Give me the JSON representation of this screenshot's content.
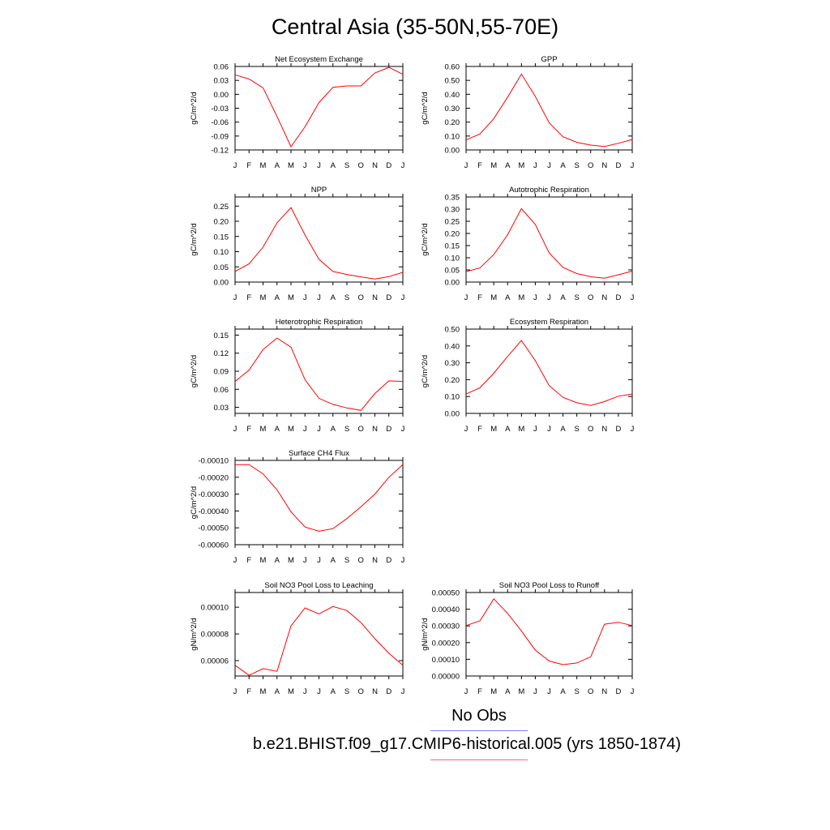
{
  "page": {
    "title": "Central Asia (35-50N,55-70E)"
  },
  "legend": {
    "obs_label": "No Obs",
    "case_label": "b.e21.BHIST.f09_g17.CMIP6-historical.005 (yrs 1850-1874)",
    "obs_color": "#7b7bff",
    "case_color": "#ff0000"
  },
  "chart_data": [
    {
      "type": "line",
      "title": "Net Ecosystem Exchange",
      "ylabel": "gC/m^2/d",
      "categories": [
        "J",
        "F",
        "M",
        "A",
        "M",
        "J",
        "J",
        "A",
        "S",
        "O",
        "N",
        "D",
        "J"
      ],
      "ylim": [
        -0.12,
        0.06
      ],
      "yticks": [
        "0.06",
        "0.03",
        "0.00",
        "-0.03",
        "-0.06",
        "-0.09",
        "-0.12"
      ],
      "series": [
        {
          "values": [
            0.042,
            0.033,
            0.014,
            -0.048,
            -0.113,
            -0.07,
            -0.018,
            0.015,
            0.018,
            0.018,
            0.046,
            0.058,
            0.043
          ],
          "color": "#ff0000"
        }
      ]
    },
    {
      "type": "line",
      "title": "GPP",
      "ylabel": "gC/m^2/d",
      "categories": [
        "J",
        "F",
        "M",
        "A",
        "M",
        "J",
        "J",
        "A",
        "S",
        "O",
        "N",
        "D",
        "J"
      ],
      "ylim": [
        0.0,
        0.6
      ],
      "yticks": [
        "0.60",
        "0.50",
        "0.40",
        "0.30",
        "0.20",
        "0.10",
        "0.00"
      ],
      "series": [
        {
          "values": [
            0.072,
            0.115,
            0.225,
            0.38,
            0.545,
            0.385,
            0.195,
            0.095,
            0.055,
            0.035,
            0.025,
            0.048,
            0.075
          ],
          "color": "#ff0000"
        }
      ]
    },
    {
      "type": "line",
      "title": "NPP",
      "ylabel": "gC/m^2/d",
      "categories": [
        "J",
        "F",
        "M",
        "A",
        "M",
        "J",
        "J",
        "A",
        "S",
        "O",
        "N",
        "D",
        "J"
      ],
      "ylim": [
        0.0,
        0.28
      ],
      "yticks": [
        "0.25",
        "0.20",
        "0.15",
        "0.10",
        "0.05",
        "0.00"
      ],
      "series": [
        {
          "values": [
            0.035,
            0.06,
            0.115,
            0.195,
            0.245,
            0.155,
            0.075,
            0.035,
            0.025,
            0.017,
            0.01,
            0.018,
            0.032
          ],
          "color": "#ff0000"
        }
      ]
    },
    {
      "type": "line",
      "title": "Autotrophic Respiration",
      "ylabel": "gC/m^2/d",
      "categories": [
        "J",
        "F",
        "M",
        "A",
        "M",
        "J",
        "J",
        "A",
        "S",
        "O",
        "N",
        "D",
        "J"
      ],
      "ylim": [
        0.0,
        0.35
      ],
      "yticks": [
        "0.35",
        "0.30",
        "0.25",
        "0.20",
        "0.15",
        "0.10",
        "0.05",
        "0.00"
      ],
      "series": [
        {
          "values": [
            0.043,
            0.058,
            0.113,
            0.195,
            0.302,
            0.237,
            0.12,
            0.06,
            0.035,
            0.022,
            0.016,
            0.03,
            0.045
          ],
          "color": "#ff0000"
        }
      ]
    },
    {
      "type": "line",
      "title": "Heterotrophic Respiration",
      "ylabel": "gC/m^2/d",
      "categories": [
        "J",
        "F",
        "M",
        "A",
        "M",
        "J",
        "J",
        "A",
        "S",
        "O",
        "N",
        "D",
        "J"
      ],
      "ylim": [
        0.02,
        0.16
      ],
      "yticks": [
        "0.15",
        "0.12",
        "0.09",
        "0.06",
        "0.03"
      ],
      "series": [
        {
          "values": [
            0.073,
            0.092,
            0.126,
            0.145,
            0.13,
            0.076,
            0.045,
            0.035,
            0.029,
            0.025,
            0.053,
            0.074,
            0.073
          ],
          "color": "#ff0000"
        }
      ]
    },
    {
      "type": "line",
      "title": "Ecosystem Respiration",
      "ylabel": "gC/m^2/d",
      "categories": [
        "J",
        "F",
        "M",
        "A",
        "M",
        "J",
        "J",
        "A",
        "S",
        "O",
        "N",
        "D",
        "J"
      ],
      "ylim": [
        0.0,
        0.5
      ],
      "yticks": [
        "0.50",
        "0.40",
        "0.30",
        "0.20",
        "0.10",
        "0.00"
      ],
      "series": [
        {
          "values": [
            0.115,
            0.152,
            0.238,
            0.338,
            0.432,
            0.313,
            0.165,
            0.095,
            0.063,
            0.047,
            0.07,
            0.102,
            0.115
          ],
          "color": "#ff0000"
        }
      ]
    },
    {
      "type": "line",
      "title": "Surface CH4 Flux",
      "ylabel": "gC/m^2/d",
      "categories": [
        "J",
        "F",
        "M",
        "A",
        "M",
        "J",
        "J",
        "A",
        "S",
        "O",
        "N",
        "D",
        "J"
      ],
      "ylim": [
        -0.0006,
        -0.0001
      ],
      "yticks": [
        "-0.00010",
        "-0.00020",
        "-0.00030",
        "-0.00040",
        "-0.00050",
        "-0.00060"
      ],
      "series": [
        {
          "values": [
            -0.000125,
            -0.000125,
            -0.00018,
            -0.000275,
            -0.000405,
            -0.000495,
            -0.00052,
            -0.000505,
            -0.000445,
            -0.000375,
            -0.0003,
            -0.0002,
            -0.000125
          ],
          "color": "#ff0000"
        }
      ]
    },
    {
      "type": "line",
      "title": "Soil NO3 Pool Loss to Leaching",
      "ylabel": "gN/m^2/d",
      "categories": [
        "J",
        "F",
        "M",
        "A",
        "M",
        "J",
        "J",
        "A",
        "S",
        "O",
        "N",
        "D",
        "J"
      ],
      "ylim": [
        4.85e-05,
        0.000111
      ],
      "yticks": [
        "0.00010",
        "0.00008",
        "0.00006"
      ],
      "series": [
        {
          "values": [
            5.65e-05,
            4.9e-05,
            5.4e-05,
            5.2e-05,
            8.6e-05,
            9.95e-05,
            9.5e-05,
            0.0001005,
            9.75e-05,
            8.85e-05,
            7.65e-05,
            6.55e-05,
            5.65e-05
          ],
          "color": "#ff0000"
        }
      ]
    },
    {
      "type": "line",
      "title": "Soil NO3 Pool Loss to Runoff",
      "ylabel": "gN/m^2/d",
      "categories": [
        "J",
        "F",
        "M",
        "A",
        "M",
        "J",
        "J",
        "A",
        "S",
        "O",
        "N",
        "D",
        "J"
      ],
      "ylim": [
        0.0,
        0.0005
      ],
      "yticks": [
        "0.00050",
        "0.00040",
        "0.00030",
        "0.00020",
        "0.00010",
        "0.00000"
      ],
      "series": [
        {
          "values": [
            0.000302,
            0.00033,
            0.000462,
            0.000375,
            0.00027,
            0.000155,
            9e-05,
            6.8e-05,
            7.8e-05,
            0.000115,
            0.00031,
            0.000322,
            0.000302
          ],
          "color": "#ff0000"
        }
      ]
    }
  ]
}
